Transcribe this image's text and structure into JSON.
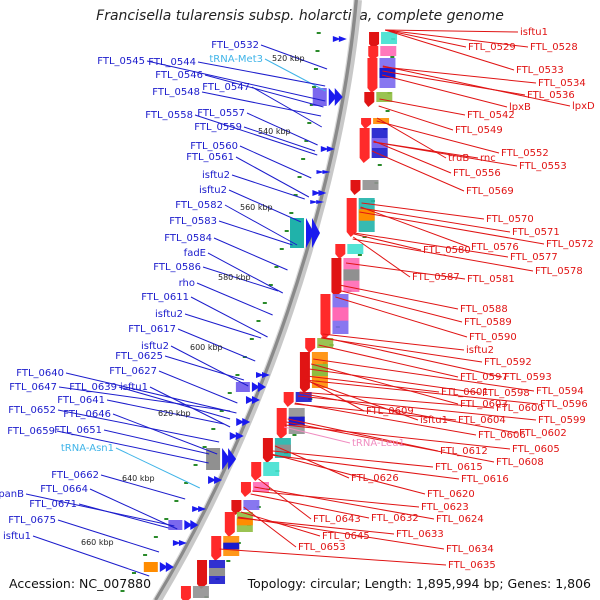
{
  "title": "Francisella tularensis subsp. holarctica, complete genome",
  "footer": {
    "accession": "Accession: NC_007880",
    "summary": "Topology: circular; Length: 1,895,994 bp; Genes: 1,806"
  },
  "colors": {
    "forward_label": "#1c1ccc",
    "reverse_label": "#e01414",
    "trna_label": "#40b4e8",
    "trna_reverse_label": "#f08cc0",
    "backbone": "#8a8a8a",
    "tick_dot": "#2a8a2a"
  },
  "ticks": [
    "520 kbp",
    "540 kbp",
    "560 kbp",
    "580 kbp",
    "600 kbp",
    "620 kbp",
    "640 kbp",
    "660 kbp"
  ],
  "forward_genes": [
    "FTL_0532",
    "tRNA-Met3",
    "FTL_0545",
    "FTL_0544",
    "FTL_0546",
    "FTL_0547",
    "FTL_0548",
    "FTL_0557",
    "FTL_0558",
    "FTL_0559",
    "FTL_0560",
    "FTL_0561",
    "isftu2",
    "isftu2",
    "FTL_0582",
    "FTL_0583",
    "FTL_0584",
    "fadE",
    "FTL_0586",
    "rho",
    "FTL_0611",
    "isftu2",
    "FTL_0617",
    "isftu2",
    "FTL_0625",
    "FTL_0627",
    "FTL_0640",
    "FTL_0647",
    "FTL_0639",
    "isftu1",
    "FTL_0641",
    "FTL_0652",
    "FTL_0646",
    "FTL_0651",
    "FTL_0659",
    "tRNA-Asn1",
    "FTL_0662",
    "panB",
    "FTL_0664",
    "FTL_0671",
    "FTL_0675",
    "isftu1"
  ],
  "reverse_genes": [
    "isftu1",
    "FTL_0529",
    "FTL_0528",
    "FTL_0533",
    "FTL_0534",
    "FTL_0536",
    "lpxB",
    "lpxD",
    "FTL_0542",
    "FTL_0549",
    "FTL_0552",
    "truB",
    "rnc",
    "FTL_0553",
    "FTL_0556",
    "FTL_0569",
    "FTL_0570",
    "FTL_0571",
    "FTL_0572",
    "FTL_0576",
    "FTL_0580",
    "FTL_0577",
    "FTL_0578",
    "FTL_0587",
    "FTL_0581",
    "FTL_0588",
    "FTL_0589",
    "FTL_0590",
    "isftu2",
    "FTL_0592",
    "FTL_0597",
    "FTL_0593",
    "FTL_0601",
    "FTL_0598",
    "FTL_0594",
    "FTL_0603",
    "FTL_0600",
    "FTL_0596",
    "FTL_0609",
    "isftu1",
    "FTL_0604",
    "FTL_0599",
    "FTL_0606",
    "FTL_0602",
    "tRNA-Leu1",
    "FTL_0605",
    "FTL_0612",
    "FTL_0608",
    "FTL_0615",
    "FTL_0616",
    "FTL_0626",
    "FTL_0620",
    "FTL_0623",
    "FTL_0632",
    "FTL_0624",
    "FTL_0643",
    "FTL_0633",
    "FTL_0645",
    "FTL_0634",
    "FTL_0653",
    "FTL_0635"
  ]
}
